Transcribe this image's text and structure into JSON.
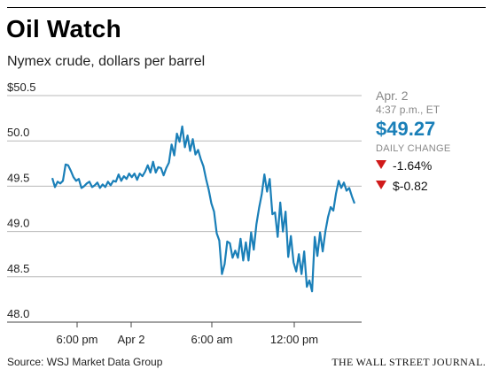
{
  "header": {
    "title": "Oil Watch",
    "subtitle": "Nymex crude, dollars per barrel"
  },
  "quote": {
    "date": "Apr. 2",
    "time": "4:37 p.m., ET",
    "price": "$49.27",
    "daily_change_label": "DAILY CHANGE",
    "pct_change": "-1.64%",
    "abs_change": "$-0.82",
    "price_color": "#1a7fb8",
    "down_color": "#d01a1a"
  },
  "footer": {
    "source": "Source: WSJ Market Data Group",
    "credit": "THE WALL STREET JOURNAL."
  },
  "chart_data": {
    "type": "line",
    "title": "Oil Watch",
    "subtitle": "Nymex crude, dollars per barrel",
    "xlabel": "",
    "ylabel": "",
    "ylim": [
      48.0,
      50.5
    ],
    "yticks": [
      "$50.5",
      "50.0",
      "49.5",
      "49.0",
      "48.5",
      "48.0"
    ],
    "xticks": [
      "6:00 pm",
      "Apr 2",
      "6:00 am",
      "12:00 pm"
    ],
    "grid": true,
    "line_color": "#1a7fb8",
    "series": [
      {
        "values": [
          49.59,
          49.49,
          49.55,
          49.53,
          49.56,
          49.74,
          49.73,
          49.67,
          49.6,
          49.56,
          49.58,
          49.48,
          49.5,
          49.53,
          49.55,
          49.49,
          49.51,
          49.54,
          49.48,
          49.52,
          49.49,
          49.55,
          49.51,
          49.56,
          49.55,
          49.63,
          49.56,
          49.61,
          49.58,
          49.64,
          49.6,
          49.64,
          49.57,
          49.64,
          49.61,
          49.66,
          49.73,
          49.65,
          49.77,
          49.65,
          49.71,
          49.7,
          49.62,
          49.7,
          49.76,
          49.96,
          49.84,
          50.08,
          49.99,
          50.16,
          49.93,
          50.06,
          49.89,
          50.02,
          49.85,
          49.9,
          49.8,
          49.72,
          49.58,
          49.46,
          49.31,
          49.22,
          48.98,
          48.9,
          48.53,
          48.64,
          48.89,
          48.87,
          48.71,
          48.79,
          48.71,
          48.92,
          48.68,
          48.88,
          48.68,
          48.99,
          48.8,
          49.08,
          49.26,
          49.41,
          49.63,
          49.44,
          49.58,
          49.19,
          49.21,
          48.94,
          49.32,
          49.0,
          49.22,
          48.72,
          48.95,
          48.66,
          48.56,
          48.75,
          48.53,
          48.78,
          48.39,
          48.46,
          48.34,
          48.94,
          48.73,
          48.99,
          48.78,
          49.0,
          49.16,
          49.27,
          49.23,
          49.42,
          49.56,
          49.48,
          49.54,
          49.45,
          49.48,
          49.39,
          49.31
        ]
      }
    ]
  }
}
